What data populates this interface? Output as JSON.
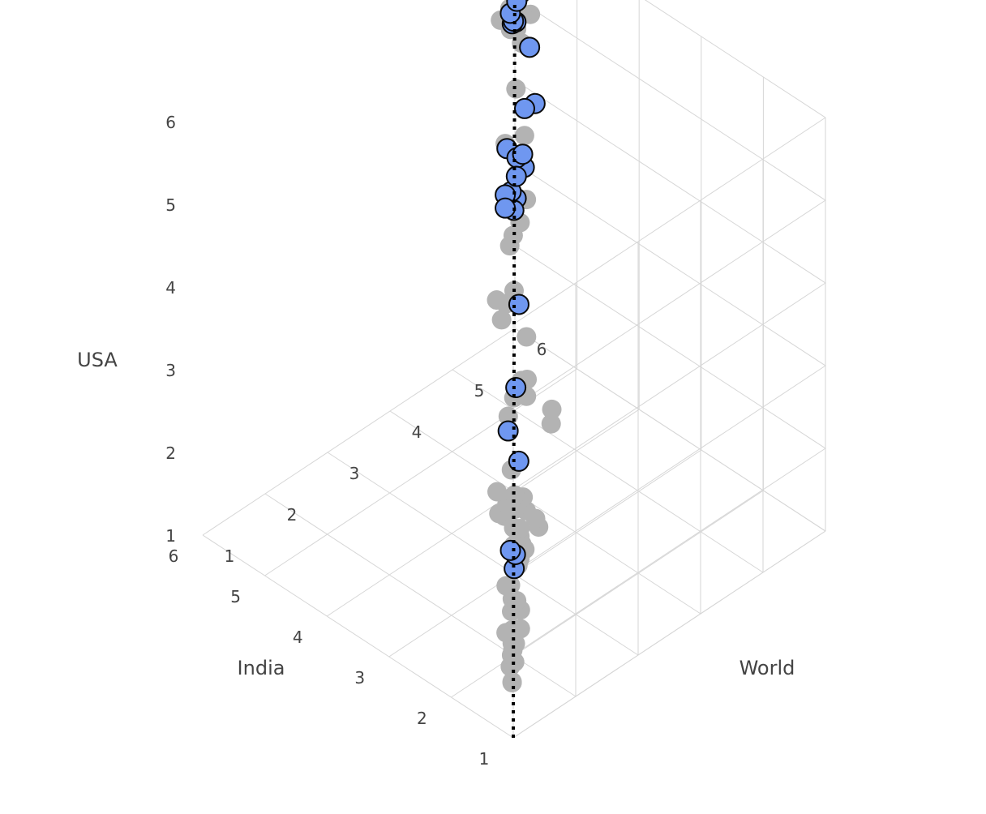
{
  "chart_data": {
    "type": "scatter",
    "axes": {
      "x": {
        "title": "India",
        "ticks": [
          "1",
          "2",
          "3",
          "4",
          "5",
          "6"
        ],
        "range": [
          1,
          6
        ]
      },
      "y": {
        "title": "World",
        "ticks": [
          "1",
          "2",
          "3",
          "4",
          "5",
          "6"
        ],
        "range": [
          1,
          6
        ]
      },
      "z": {
        "title": "USA",
        "ticks": [
          "1",
          "2",
          "3",
          "4",
          "5",
          "6"
        ],
        "range": [
          1,
          6
        ]
      }
    },
    "grid": true,
    "colors": {
      "highlight": "#6f97f0",
      "highlight_outline": "#0a0a0a",
      "other": "#b3b3b3",
      "grid": "#d6d6d6",
      "diagonal": "#000000"
    },
    "diagonal_line": {
      "from": [
        1,
        1,
        1
      ],
      "to": [
        6,
        6,
        6
      ],
      "style": "dotted"
    },
    "series": [
      {
        "marker": "gray-circle",
        "points": [
          [
            1.27,
            1.25,
            1.42
          ],
          [
            1.41,
            1.43,
            1.5
          ],
          [
            1.32,
            1.3,
            1.36
          ],
          [
            1.49,
            1.44,
            1.4
          ],
          [
            1.52,
            1.51,
            1.55
          ],
          [
            1.59,
            1.56,
            1.43
          ],
          [
            1.61,
            1.64,
            1.52
          ],
          [
            1.7,
            1.68,
            1.46
          ],
          [
            1.72,
            1.7,
            1.6
          ],
          [
            1.76,
            1.73,
            1.79
          ],
          [
            1.7,
            1.81,
            1.57
          ],
          [
            1.91,
            1.79,
            1.43
          ],
          [
            1.88,
            1.99,
            1.62
          ],
          [
            1.98,
            1.96,
            1.72
          ],
          [
            1.81,
            1.86,
            1.83
          ],
          [
            1.98,
            1.93,
            1.9
          ],
          [
            1.93,
            2.0,
            2.13
          ],
          [
            2.1,
            2.13,
            1.99
          ],
          [
            2.23,
            2.11,
            1.68
          ],
          [
            2.12,
            2.3,
            2.08
          ],
          [
            2.17,
            2.3,
            2.12
          ],
          [
            2.26,
            2.26,
            2.29
          ],
          [
            2.24,
            2.34,
            2.16
          ],
          [
            2.25,
            2.35,
            1.88
          ],
          [
            2.07,
            2.17,
            2.42
          ],
          [
            2.39,
            2.39,
            1.95
          ],
          [
            2.5,
            2.51,
            1.73
          ],
          [
            2.14,
            2.54,
            2.22
          ],
          [
            2.42,
            2.62,
            2.24
          ],
          [
            2.5,
            2.52,
            2.27
          ],
          [
            2.6,
            2.45,
            2.17
          ],
          [
            2.4,
            2.75,
            2.09
          ],
          [
            2.53,
            2.68,
            2.32
          ],
          [
            2.84,
            2.6,
            2.01
          ],
          [
            2.88,
            2.77,
            2.02
          ],
          [
            2.92,
            2.93,
            2.03
          ],
          [
            3.05,
            2.78,
            2.08
          ],
          [
            3.01,
            2.97,
            2.27
          ],
          [
            2.33,
            2.93,
            3.18
          ],
          [
            2.38,
            2.99,
            3.3
          ],
          [
            2.76,
            2.67,
            3.19
          ],
          [
            2.82,
            2.82,
            3.31
          ],
          [
            3.07,
            3.19,
            3.21
          ],
          [
            3.05,
            3.25,
            3.0
          ],
          [
            3.17,
            3.38,
            3.08
          ],
          [
            3.22,
            3.42,
            3.55
          ],
          [
            3.55,
            3.35,
            3.63
          ],
          [
            3.44,
            3.44,
            3.99
          ],
          [
            3.7,
            3.57,
            3.64
          ],
          [
            3.69,
            3.41,
            3.77
          ],
          [
            3.6,
            3.53,
            4.41
          ],
          [
            4.64,
            4.62,
            3.48
          ],
          [
            4.72,
            4.91,
            3.73
          ],
          [
            4.58,
            4.67,
            3.64
          ],
          [
            4.62,
            4.65,
            3.92
          ],
          [
            4.82,
            4.85,
            3.7
          ],
          [
            4.99,
            5.03,
            3.85
          ],
          [
            5.06,
            4.91,
            4.24
          ],
          [
            4.91,
            5.07,
            4.33
          ],
          [
            5.44,
            5.46,
            4.44
          ],
          [
            5.46,
            5.49,
            5.14
          ],
          [
            5.52,
            5.63,
            4.87
          ],
          [
            5.86,
            5.63,
            4.98
          ],
          [
            6.09,
            6.01,
            4.82
          ],
          [
            6.0,
            5.86,
            5.2
          ],
          [
            5.86,
            5.52,
            5.57
          ],
          [
            5.99,
            5.99,
            5.08
          ],
          [
            5.78,
            6.03,
            4.89
          ],
          [
            6.05,
            5.98,
            4.6
          ],
          [
            5.85,
            5.97,
            4.88
          ]
        ]
      },
      {
        "marker": "blue-outlined-circle",
        "points": [
          [
            1.91,
            1.92,
            2.14
          ],
          [
            1.93,
            1.96,
            2.28
          ],
          [
            1.89,
            1.84,
            2.41
          ],
          [
            2.65,
            2.73,
            2.67
          ],
          [
            2.46,
            2.37,
            3.31
          ],
          [
            3.05,
            3.08,
            3.19
          ],
          [
            2.96,
            3.04,
            4.26
          ],
          [
            4.26,
            4.29,
            4.28
          ],
          [
            4.13,
            4.08,
            4.53
          ],
          [
            4.71,
            4.7,
            3.71
          ],
          [
            4.57,
            4.45,
            4.65
          ],
          [
            4.27,
            4.43,
            4.58
          ],
          [
            4.67,
            4.71,
            4.36
          ],
          [
            4.69,
            4.72,
            4.12
          ],
          [
            4.91,
            5.04,
            4.12
          ],
          [
            5.06,
            4.91,
            3.62
          ],
          [
            5.02,
            4.87,
            3.5
          ],
          [
            4.6,
            4.93,
            4.94
          ],
          [
            5.18,
            5.34,
            4.39
          ],
          [
            5.15,
            5.39,
            5.12
          ],
          [
            5.51,
            5.53,
            5.18
          ],
          [
            5.62,
            5.58,
            5.08
          ],
          [
            5.49,
            5.47,
            5.23
          ],
          [
            5.48,
            5.41,
            5.36
          ],
          [
            5.54,
            5.61,
            5.47
          ],
          [
            5.55,
            5.64,
            5.45
          ],
          [
            5.84,
            5.86,
            5.29
          ],
          [
            5.9,
            5.61,
            5.74
          ],
          [
            6.02,
            6.05,
            4.92
          ],
          [
            6.1,
            6.12,
            5.01
          ],
          [
            6.04,
            6.1,
            5.08
          ]
        ]
      }
    ]
  }
}
